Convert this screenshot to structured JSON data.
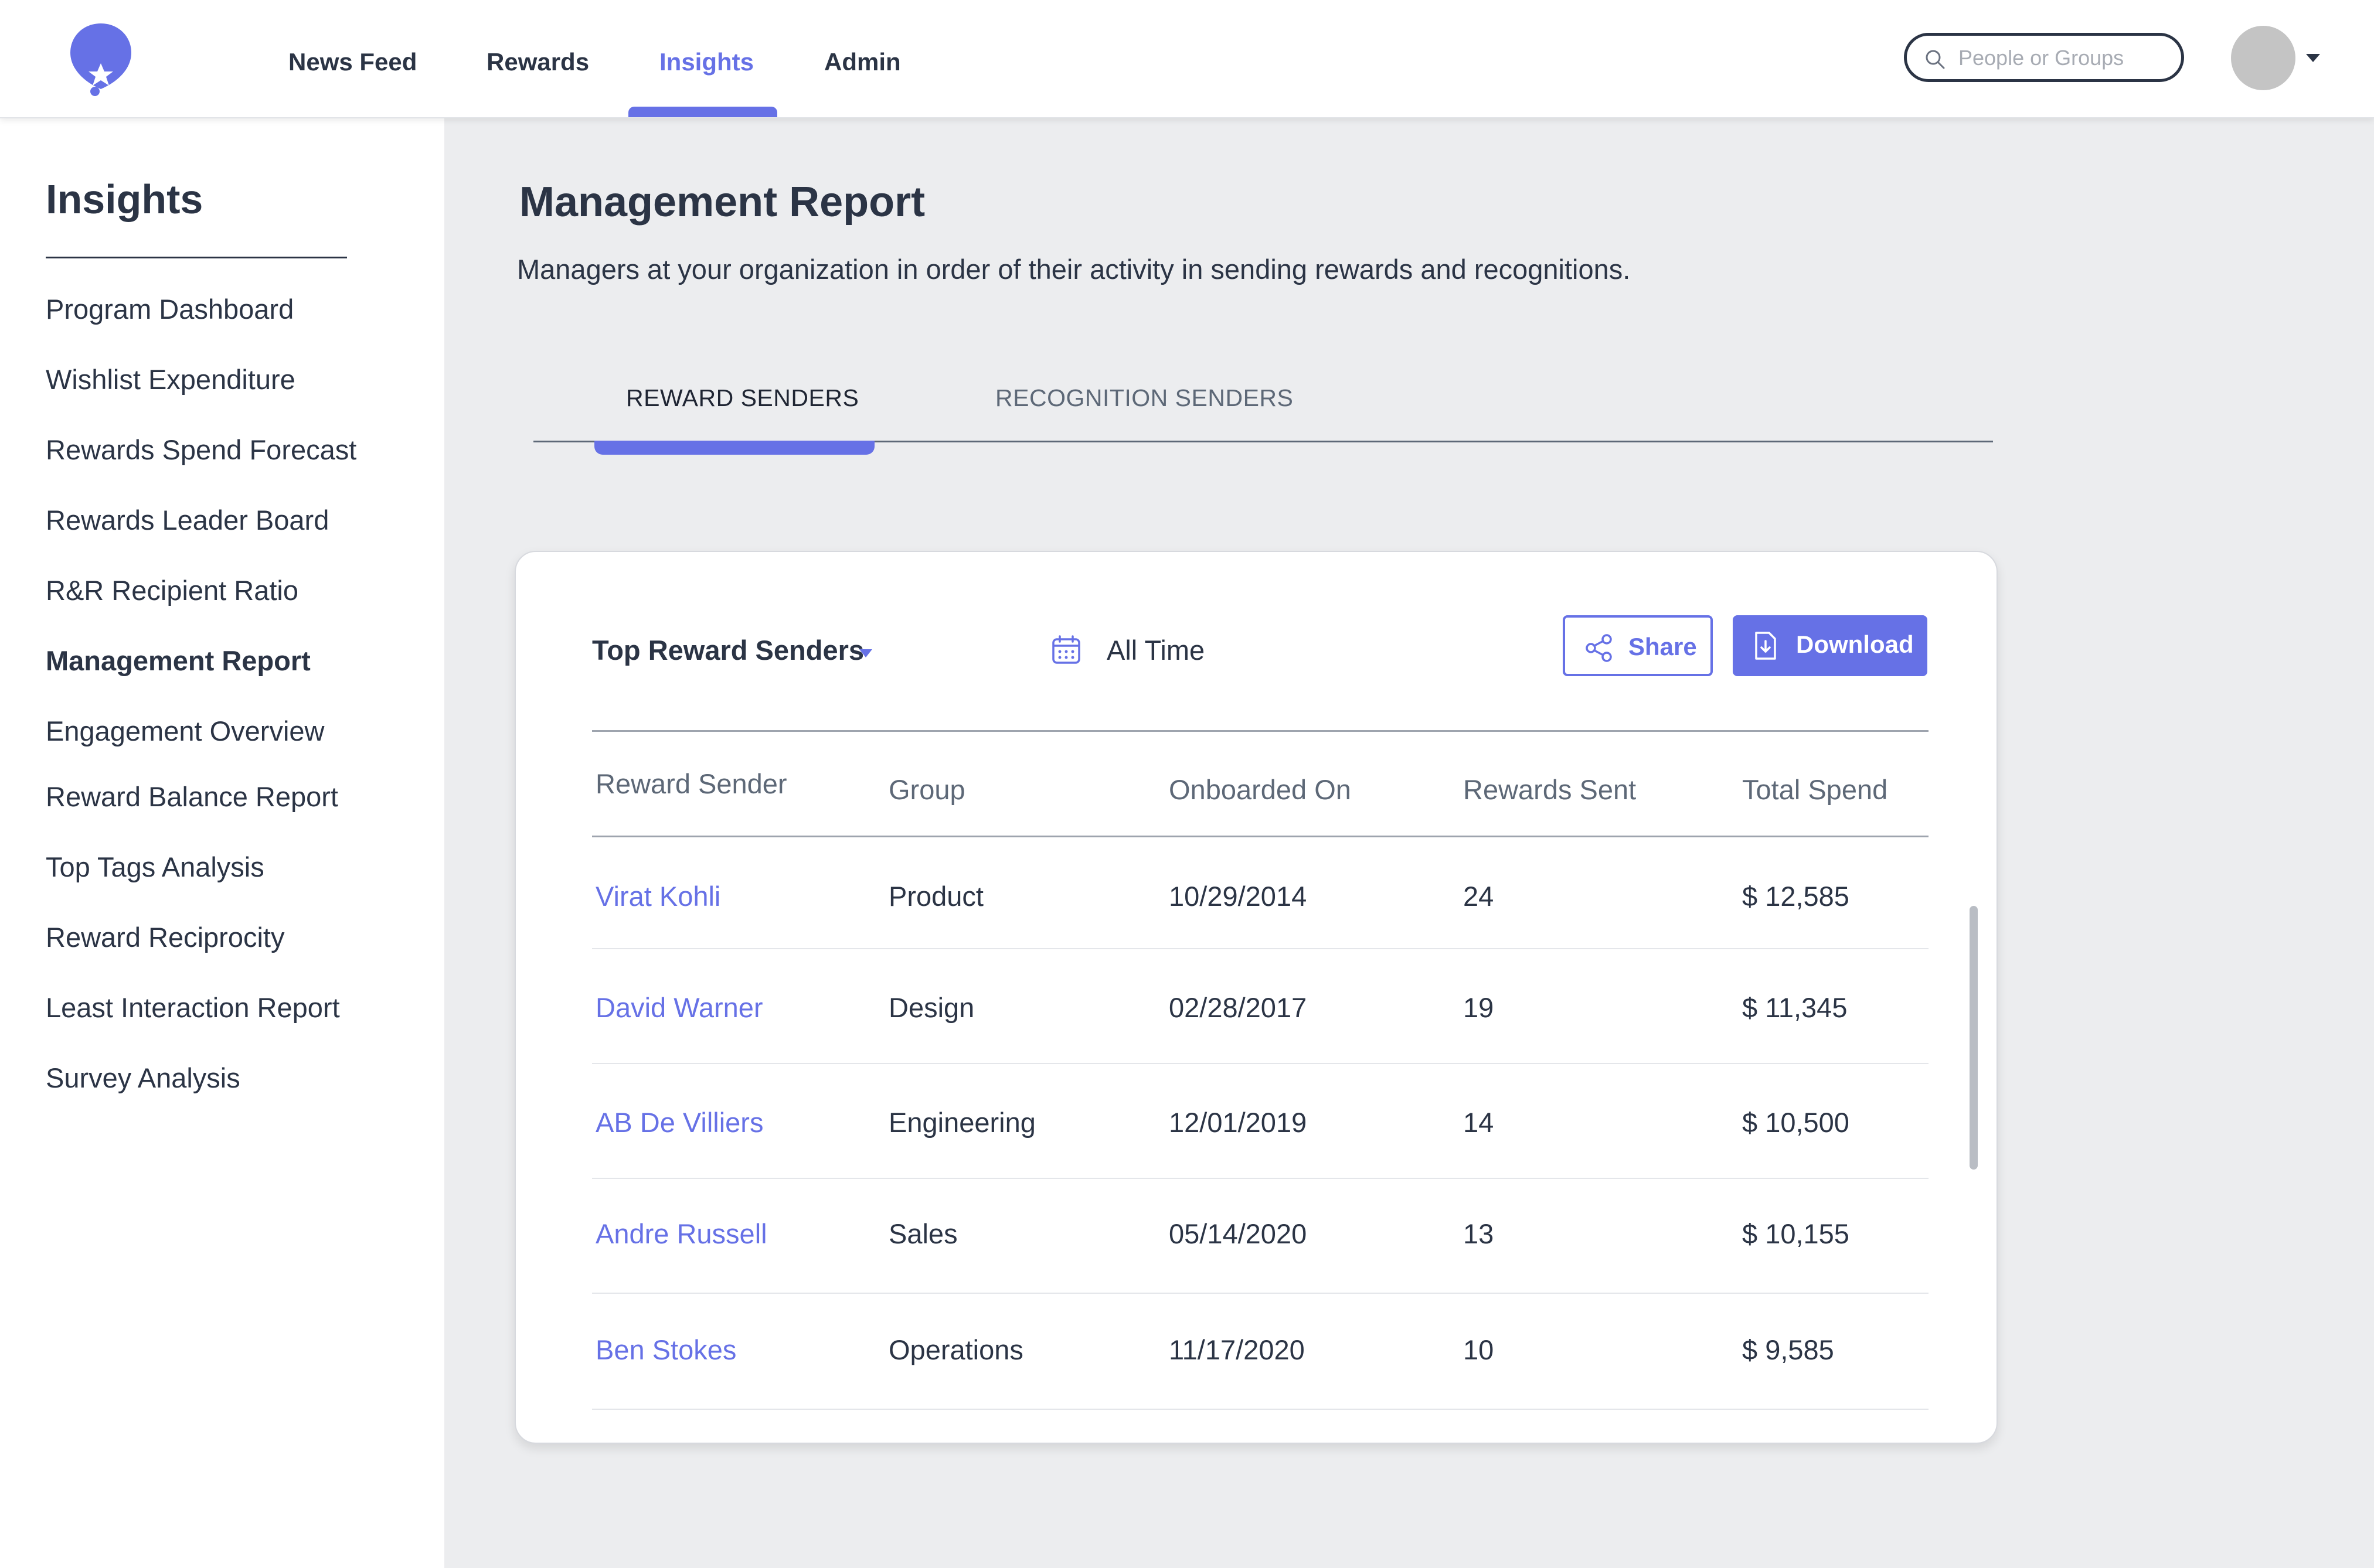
{
  "header": {
    "nav": [
      {
        "label": "News Feed"
      },
      {
        "label": "Rewards"
      },
      {
        "label": "Insights",
        "active": true
      },
      {
        "label": "Admin"
      }
    ],
    "search_placeholder": "People or Groups"
  },
  "sidebar": {
    "title": "Insights",
    "items": [
      {
        "label": "Program Dashboard"
      },
      {
        "label": "Wishlist Expenditure"
      },
      {
        "label": "Rewards Spend Forecast"
      },
      {
        "label": "Rewards Leader Board"
      },
      {
        "label": "R&R Recipient Ratio"
      },
      {
        "label": "Management Report",
        "active": true
      },
      {
        "label": "Engagement Overview"
      },
      {
        "label": "Reward Balance Report"
      },
      {
        "label": "Top Tags Analysis"
      },
      {
        "label": "Reward Reciprocity"
      },
      {
        "label": "Least Interaction Report"
      },
      {
        "label": "Survey Analysis"
      }
    ]
  },
  "main": {
    "title": "Management Report",
    "description": "Managers at your organization in order of their activity in sending rewards and recognitions.",
    "tabs": [
      {
        "label": "REWARD SENDERS",
        "active": true
      },
      {
        "label": "RECOGNITION SENDERS"
      }
    ],
    "card": {
      "report_select": "Top Reward Senders",
      "date_range": "All Time",
      "share_label": "Share",
      "download_label": "Download",
      "columns": [
        "Reward Sender",
        "Group",
        "Onboarded On",
        "Rewards Sent",
        "Total Spend"
      ],
      "rows": [
        {
          "sender": "Virat Kohli",
          "group": "Product",
          "onboarded": "10/29/2014",
          "sent": "24",
          "spend": "$ 12,585"
        },
        {
          "sender": "David Warner",
          "group": "Design",
          "onboarded": "02/28/2017",
          "sent": "19",
          "spend": "$ 11,345"
        },
        {
          "sender": "AB De Villiers",
          "group": "Engineering",
          "onboarded": "12/01/2019",
          "sent": "14",
          "spend": "$ 10,500"
        },
        {
          "sender": "Andre Russell",
          "group": "Sales",
          "onboarded": "05/14/2020",
          "sent": "13",
          "spend": "$ 10,155"
        },
        {
          "sender": "Ben Stokes",
          "group": "Operations",
          "onboarded": "11/17/2020",
          "sent": "10",
          "spend": "$ 9,585"
        }
      ]
    }
  },
  "colors": {
    "accent": "#6671e6",
    "text": "#2b3445",
    "muted": "#5d6877",
    "main_bg": "#ecedef"
  }
}
